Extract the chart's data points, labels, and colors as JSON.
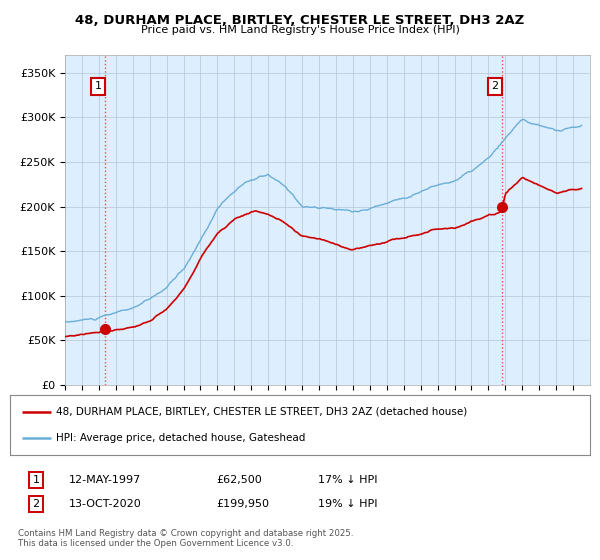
{
  "title": "48, DURHAM PLACE, BIRTLEY, CHESTER LE STREET, DH3 2AZ",
  "subtitle": "Price paid vs. HM Land Registry's House Price Index (HPI)",
  "ylim": [
    0,
    370000
  ],
  "yticks": [
    0,
    50000,
    100000,
    150000,
    200000,
    250000,
    300000,
    350000
  ],
  "ytick_labels": [
    "£0",
    "£50K",
    "£100K",
    "£150K",
    "£200K",
    "£250K",
    "£300K",
    "£350K"
  ],
  "hpi_color": "#6aaed6",
  "price_color": "#cc0000",
  "vline_color": "#ff4444",
  "purchase1_date": 1997.36,
  "purchase1_price": 62500,
  "purchase1_label": "1",
  "purchase2_date": 2020.79,
  "purchase2_price": 199950,
  "purchase2_label": "2",
  "legend_line1": "48, DURHAM PLACE, BIRTLEY, CHESTER LE STREET, DH3 2AZ (detached house)",
  "legend_line2": "HPI: Average price, detached house, Gateshead",
  "table_row1": [
    "1",
    "12-MAY-1997",
    "£62,500",
    "17% ↓ HPI"
  ],
  "table_row2": [
    "2",
    "13-OCT-2020",
    "£199,950",
    "19% ↓ HPI"
  ],
  "footnote": "Contains HM Land Registry data © Crown copyright and database right 2025.\nThis data is licensed under the Open Government Licence v3.0.",
  "background_color": "#ffffff",
  "chart_bg_color": "#ddeeff",
  "grid_color": "#bbccdd"
}
